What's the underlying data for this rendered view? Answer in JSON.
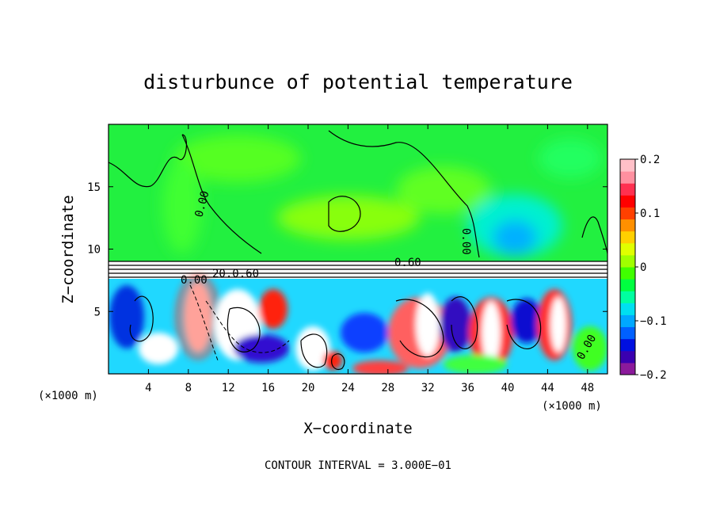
{
  "chart_data": {
    "type": "heatmap",
    "title": "disturbunce of potential temperature",
    "xlabel": "X−coordinate",
    "ylabel": "Z−coordinate",
    "x_unit": "(×1000 m)",
    "x_unit_right": "(×1000 m)",
    "xlim": [
      0,
      50
    ],
    "ylim": [
      0,
      20
    ],
    "x_ticks": [
      4,
      8,
      12,
      16,
      20,
      24,
      28,
      32,
      36,
      40,
      44,
      48
    ],
    "x_tick_labels": [
      "4",
      "8",
      "12",
      "16",
      "20",
      "24",
      "28",
      "32",
      "36",
      "40",
      "44",
      "48"
    ],
    "y_ticks": [
      5,
      10,
      15
    ],
    "y_tick_labels": [
      "5",
      "10",
      "15"
    ],
    "colorbar": {
      "range": [
        -0.2,
        0.2
      ],
      "ticks": [
        0.2,
        0.1,
        0,
        -0.1,
        -0.2
      ],
      "tick_labels": [
        "0.2",
        "0.1",
        "0",
        "−0.1",
        "−0.2"
      ],
      "colors": [
        "#8b1a9b",
        "#3a00b0",
        "#0010e0",
        "#0060ff",
        "#00a8ff",
        "#00e0f0",
        "#00ffa0",
        "#00ff40",
        "#40ff00",
        "#a0ff00",
        "#e0ff00",
        "#ffd000",
        "#ff9000",
        "#ff4000",
        "#ff0000",
        "#ff3050",
        "#ff90a0",
        "#ffc0c8"
      ]
    },
    "contour_labels": [
      "0.00",
      "0.60",
      "20.0.60",
      "0.00",
      "0.00",
      "0.00"
    ],
    "contour_interval_text": "CONTOUR INTERVAL = 3.000E−01"
  }
}
